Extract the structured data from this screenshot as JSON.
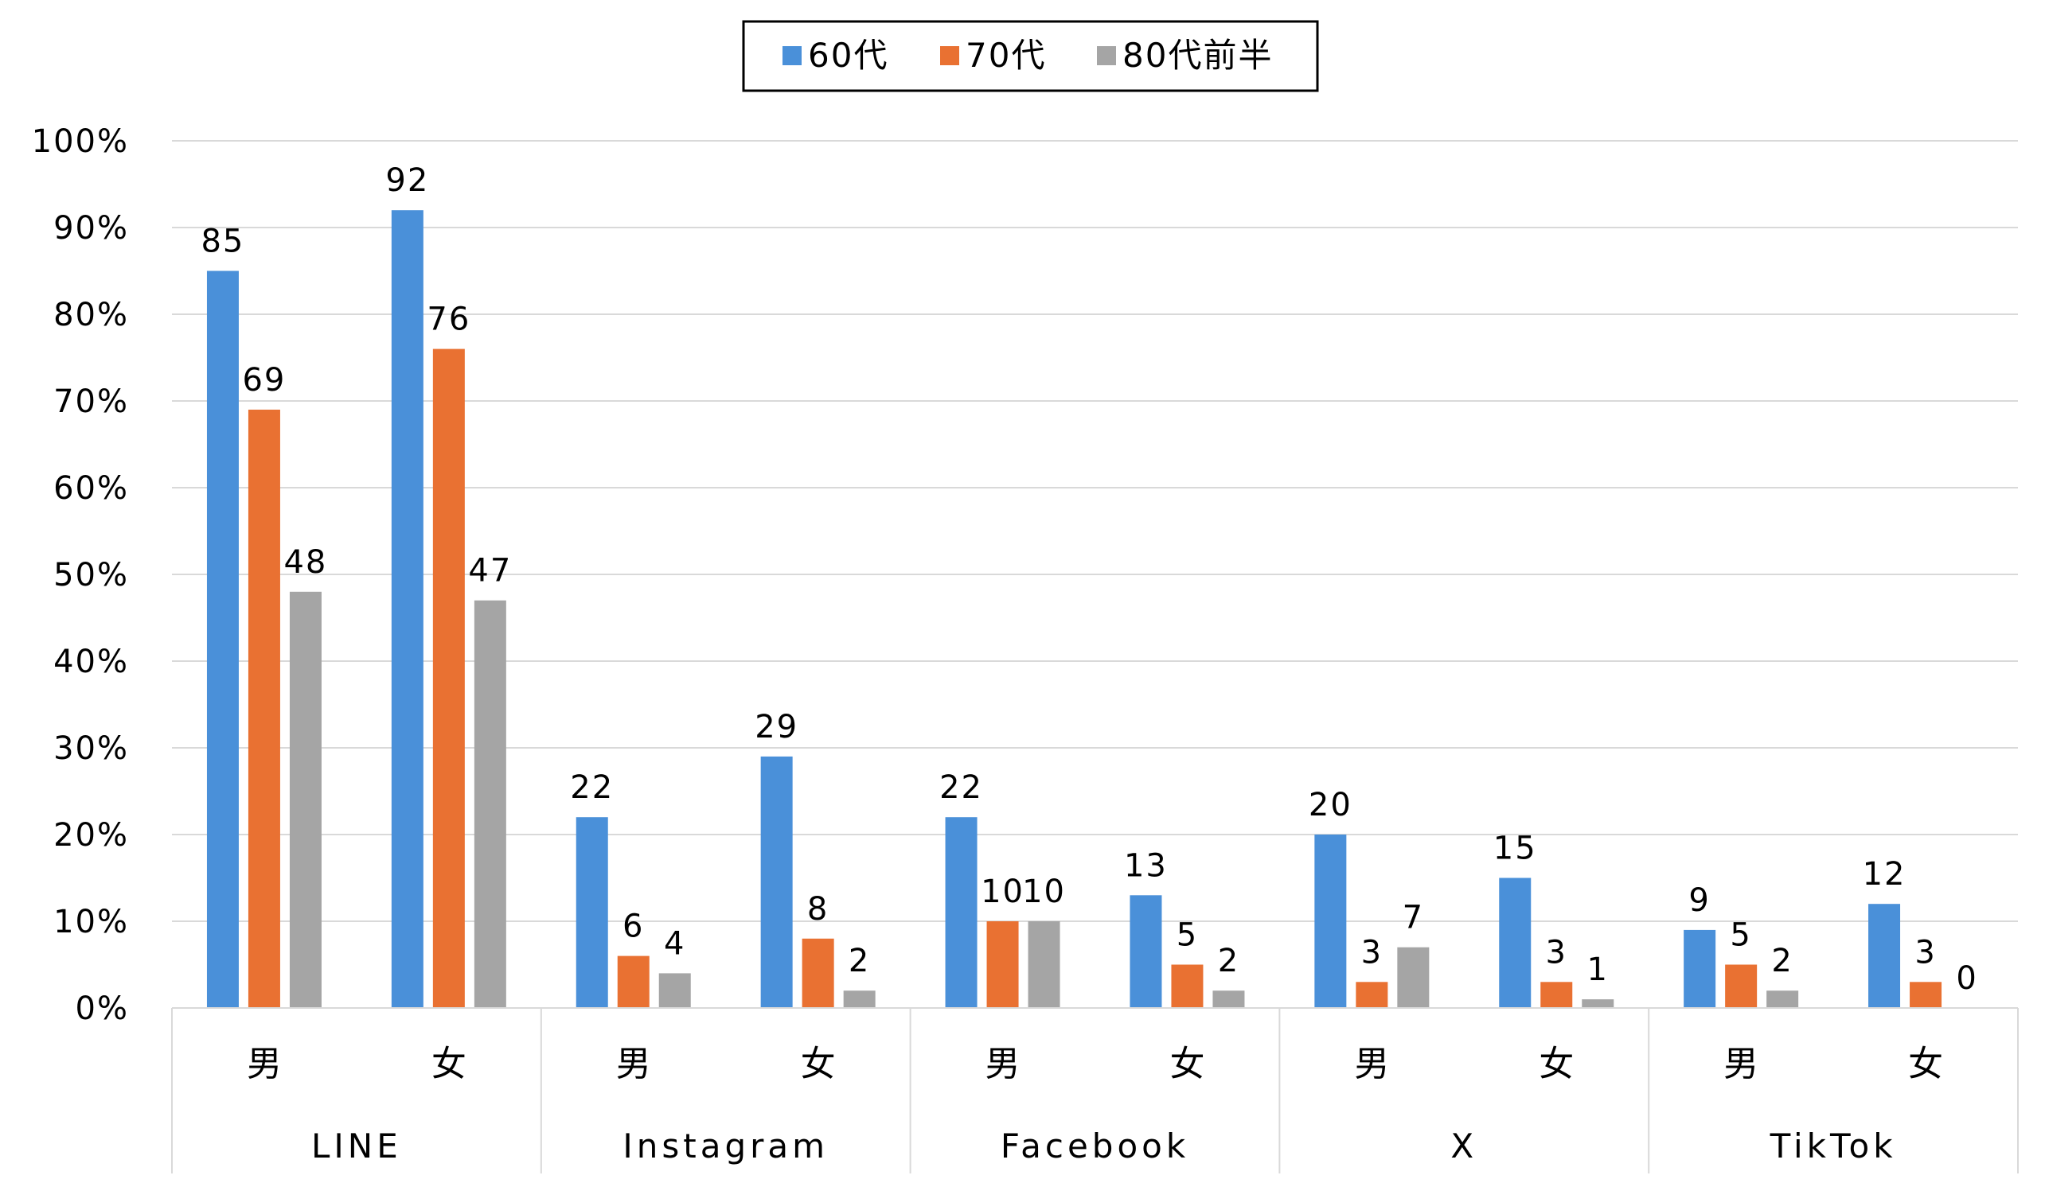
{
  "chart_data": {
    "type": "bar",
    "ylabel_ticks": [
      "0%",
      "10%",
      "20%",
      "30%",
      "40%",
      "50%",
      "60%",
      "70%",
      "80%",
      "90%",
      "100%"
    ],
    "ylim": [
      0,
      100
    ],
    "grid": true,
    "legend_position": "top-center",
    "groups": [
      {
        "name": "LINE",
        "categories": [
          "男",
          "女"
        ]
      },
      {
        "name": "Instagram",
        "categories": [
          "男",
          "女"
        ]
      },
      {
        "name": "Facebook",
        "categories": [
          "男",
          "女"
        ]
      },
      {
        "name": "X",
        "categories": [
          "男",
          "女"
        ]
      },
      {
        "name": "TikTok",
        "categories": [
          "男",
          "女"
        ]
      }
    ],
    "series": [
      {
        "name": "60代",
        "color": "#4a90d9",
        "values": [
          85,
          92,
          22,
          29,
          22,
          13,
          20,
          15,
          9,
          12
        ],
        "labels": [
          "85",
          "92",
          "22",
          "29",
          "22",
          "13",
          "20",
          "15",
          "9",
          "12"
        ]
      },
      {
        "name": "70代",
        "color": "#e97132",
        "values": [
          69,
          76,
          6,
          8,
          10,
          5,
          3,
          3,
          5,
          3
        ],
        "labels": [
          "69",
          "76",
          "6",
          "8",
          "10",
          "5",
          "3",
          "3",
          "5",
          "3"
        ]
      },
      {
        "name": "80代前半",
        "color": "#a5a5a5",
        "values": [
          48,
          47,
          4,
          2,
          10,
          2,
          7,
          1,
          2,
          0
        ],
        "labels": [
          "48",
          "47",
          "4",
          "2",
          "10",
          "2",
          "7",
          "1",
          "2",
          "0"
        ]
      }
    ]
  }
}
